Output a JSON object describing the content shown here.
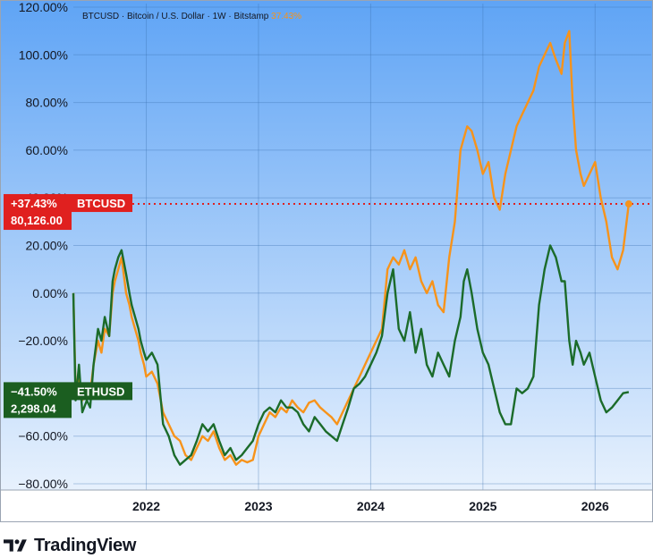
{
  "chart_data": {
    "type": "line",
    "title": "BTCUSD · Bitcoin / U.S. Dollar · 1W · Bitstamp",
    "title_value": "37.43%",
    "x_ticks": [
      "2022",
      "2023",
      "2024",
      "2025",
      "2026"
    ],
    "y_ticks": [
      "120.00%",
      "100.00%",
      "80.00%",
      "60.00%",
      "40.00%",
      "20.00%",
      "0.00%",
      "−20.00%",
      "−40.00%",
      "−60.00%",
      "−80.00%"
    ],
    "ylim": [
      -80,
      120
    ],
    "xlim": [
      2021.35,
      2026.5
    ],
    "grid": true,
    "colors": {
      "background_top": "#5fa4f5",
      "background_bottom": "#e7f1fd",
      "btc": "#f7931a",
      "eth": "#1b6b2a",
      "btc_label": "#e0201f",
      "eth_label": "#1b5e20"
    },
    "series": [
      {
        "name": "BTCUSD",
        "color": "#f7931a",
        "label": {
          "pct": "+37.43%",
          "name": "BTCUSD",
          "price": "80,126.00"
        },
        "x": [
          2021.35,
          2021.37,
          2021.4,
          2021.43,
          2021.47,
          2021.5,
          2021.53,
          2021.57,
          2021.6,
          2021.63,
          2021.67,
          2021.7,
          2021.72,
          2021.75,
          2021.78,
          2021.82,
          2021.85,
          2021.87,
          2021.9,
          2021.93,
          2021.95,
          2021.98,
          2022.0,
          2022.05,
          2022.1,
          2022.15,
          2022.2,
          2022.25,
          2022.3,
          2022.35,
          2022.4,
          2022.45,
          2022.5,
          2022.55,
          2022.6,
          2022.65,
          2022.7,
          2022.75,
          2022.8,
          2022.85,
          2022.9,
          2022.95,
          2023.0,
          2023.05,
          2023.1,
          2023.15,
          2023.2,
          2023.25,
          2023.3,
          2023.35,
          2023.4,
          2023.45,
          2023.5,
          2023.55,
          2023.6,
          2023.65,
          2023.7,
          2023.75,
          2023.8,
          2023.85,
          2023.9,
          2023.95,
          2024.0,
          2024.05,
          2024.1,
          2024.15,
          2024.2,
          2024.25,
          2024.3,
          2024.35,
          2024.4,
          2024.45,
          2024.5,
          2024.55,
          2024.6,
          2024.65,
          2024.7,
          2024.75,
          2024.8,
          2024.83,
          2024.86,
          2024.9,
          2024.95,
          2025.0,
          2025.05,
          2025.1,
          2025.15,
          2025.2,
          2025.25,
          2025.3,
          2025.35,
          2025.4,
          2025.45,
          2025.5,
          2025.55,
          2025.6,
          2025.65,
          2025.7,
          2025.73,
          2025.77,
          2025.8,
          2025.83,
          2025.87,
          2025.9,
          2025.95,
          2026.0,
          2026.05,
          2026.1,
          2026.15,
          2026.2,
          2026.25,
          2026.3
        ],
        "values": [
          0,
          -40,
          -35,
          -45,
          -40,
          -42,
          -30,
          -20,
          -25,
          -15,
          -18,
          0,
          5,
          10,
          15,
          0,
          -5,
          -10,
          -15,
          -20,
          -25,
          -30,
          -35,
          -33,
          -38,
          -50,
          -55,
          -60,
          -62,
          -68,
          -70,
          -65,
          -60,
          -62,
          -58,
          -65,
          -70,
          -68,
          -72,
          -70,
          -71,
          -70,
          -60,
          -55,
          -50,
          -52,
          -48,
          -50,
          -45,
          -48,
          -50,
          -46,
          -45,
          -48,
          -50,
          -52,
          -55,
          -50,
          -45,
          -40,
          -35,
          -30,
          -25,
          -20,
          -15,
          10,
          15,
          12,
          18,
          10,
          15,
          5,
          0,
          5,
          -5,
          -8,
          15,
          30,
          60,
          65,
          70,
          68,
          60,
          50,
          55,
          40,
          35,
          50,
          60,
          70,
          75,
          80,
          85,
          95,
          100,
          105,
          98,
          92,
          105,
          110,
          80,
          60,
          50,
          45,
          50,
          55,
          40,
          30,
          15,
          10,
          18,
          37.43
        ]
      },
      {
        "name": "ETHUSD",
        "color": "#1b6b2a",
        "label": {
          "pct": "−41.50%",
          "name": "ETHUSD",
          "price": "2,298.04"
        },
        "x": [
          2021.35,
          2021.37,
          2021.4,
          2021.43,
          2021.47,
          2021.5,
          2021.53,
          2021.57,
          2021.6,
          2021.63,
          2021.67,
          2021.7,
          2021.72,
          2021.75,
          2021.78,
          2021.82,
          2021.85,
          2021.87,
          2021.9,
          2021.93,
          2021.95,
          2021.98,
          2022.0,
          2022.05,
          2022.1,
          2022.15,
          2022.2,
          2022.25,
          2022.3,
          2022.35,
          2022.4,
          2022.45,
          2022.5,
          2022.55,
          2022.6,
          2022.65,
          2022.7,
          2022.75,
          2022.8,
          2022.85,
          2022.9,
          2022.95,
          2023.0,
          2023.05,
          2023.1,
          2023.15,
          2023.2,
          2023.25,
          2023.3,
          2023.35,
          2023.4,
          2023.45,
          2023.5,
          2023.55,
          2023.6,
          2023.65,
          2023.7,
          2023.75,
          2023.8,
          2023.85,
          2023.9,
          2023.95,
          2024.0,
          2024.05,
          2024.1,
          2024.15,
          2024.2,
          2024.25,
          2024.3,
          2024.35,
          2024.4,
          2024.45,
          2024.5,
          2024.55,
          2024.6,
          2024.65,
          2024.7,
          2024.75,
          2024.8,
          2024.83,
          2024.86,
          2024.9,
          2024.95,
          2025.0,
          2025.05,
          2025.1,
          2025.15,
          2025.2,
          2025.25,
          2025.3,
          2025.35,
          2025.4,
          2025.45,
          2025.5,
          2025.55,
          2025.6,
          2025.65,
          2025.7,
          2025.73,
          2025.77,
          2025.8,
          2025.83,
          2025.87,
          2025.9,
          2025.95,
          2026.0,
          2026.05,
          2026.1,
          2026.15,
          2026.2,
          2026.25,
          2026.3
        ],
        "values": [
          0,
          -45,
          -30,
          -50,
          -45,
          -48,
          -30,
          -15,
          -20,
          -10,
          -18,
          5,
          10,
          15,
          18,
          8,
          0,
          -5,
          -10,
          -15,
          -20,
          -25,
          -28,
          -25,
          -30,
          -55,
          -60,
          -68,
          -72,
          -70,
          -68,
          -62,
          -55,
          -58,
          -55,
          -62,
          -68,
          -65,
          -70,
          -68,
          -65,
          -62,
          -55,
          -50,
          -48,
          -50,
          -45,
          -48,
          -48,
          -50,
          -55,
          -58,
          -52,
          -55,
          -58,
          -60,
          -62,
          -55,
          -48,
          -40,
          -38,
          -35,
          -30,
          -25,
          -18,
          0,
          10,
          -15,
          -20,
          -8,
          -25,
          -15,
          -30,
          -35,
          -25,
          -30,
          -35,
          -20,
          -10,
          5,
          10,
          0,
          -15,
          -25,
          -30,
          -40,
          -50,
          -55,
          -55,
          -40,
          -42,
          -40,
          -35,
          -5,
          10,
          20,
          15,
          5,
          5,
          -20,
          -30,
          -20,
          -25,
          -30,
          -25,
          -35,
          -45,
          -50,
          -48,
          -45,
          -42,
          -41.5
        ]
      }
    ]
  },
  "brand": {
    "name": "TradingView"
  }
}
